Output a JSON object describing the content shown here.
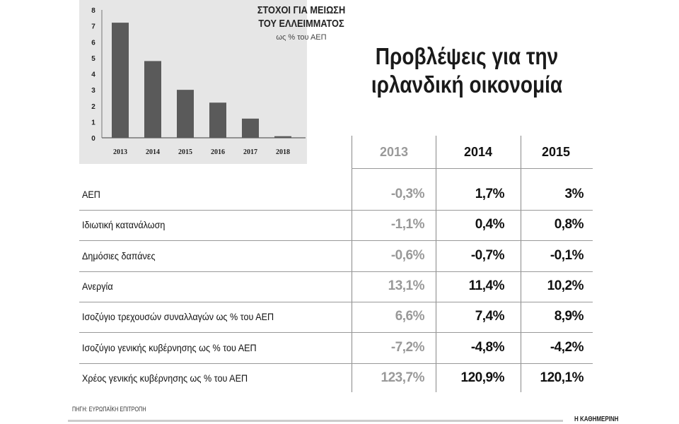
{
  "chart_data": {
    "type": "bar",
    "title": "ΣΤΟΧΟΙ ΓΙΑ ΜΕΙΩΣΗ ΤΟΥ ΕΛΛΕΙΜΜΑΤΟΣ",
    "title_lines": [
      "ΣΤΟΧΟΙ ΓΙΑ ΜΕΙΩΣΗ",
      "ΤΟΥ ΕΛΛΕΙΜΜΑΤΟΣ"
    ],
    "subtitle": "ως % του ΑΕΠ",
    "categories": [
      "2013",
      "2014",
      "2015",
      "2016",
      "2017",
      "2018"
    ],
    "values": [
      7.2,
      4.8,
      3.0,
      2.2,
      1.2,
      0.1
    ],
    "ylim": [
      0,
      8
    ],
    "yticks": [
      0,
      1,
      2,
      3,
      4,
      5,
      6,
      7,
      8
    ],
    "grid": false,
    "bar_color": "#5a5a5a",
    "background": "#e6e6e6"
  },
  "headline": {
    "line1": "Προβλέψεις για την",
    "line2": "ιρλανδική οικονομία"
  },
  "table": {
    "columns": [
      "2013",
      "2014",
      "2015"
    ],
    "rows": [
      {
        "label": "ΑΕΠ",
        "values": [
          "-0,3%",
          "1,7%",
          "3%"
        ]
      },
      {
        "label": "Ιδιωτική κατανάλωση",
        "values": [
          "-1,1%",
          "0,4%",
          "0,8%"
        ]
      },
      {
        "label": "Δημόσιες δαπάνες",
        "values": [
          "-0,6%",
          "-0,7%",
          "-0,1%"
        ]
      },
      {
        "label": "Ανεργία",
        "values": [
          "13,1%",
          "11,4%",
          "10,2%"
        ]
      },
      {
        "label": "Ισοζύγιο τρεχουσών συναλλαγών ως % του ΑΕΠ",
        "values": [
          "6,6%",
          "7,4%",
          "8,9%"
        ]
      },
      {
        "label": "Ισοζύγιο γενικής κυβέρνησης ως % του ΑΕΠ",
        "values": [
          "-7,2%",
          "-4,8%",
          "-4,2%"
        ]
      },
      {
        "label": "Χρέος γενικής κυβέρνησης ως % του ΑΕΠ",
        "values": [
          "123,7%",
          "120,9%",
          "120,1%"
        ]
      }
    ]
  },
  "source": "ΠΗΓΗ: ΕΥΡΩΠΑΪΚΗ ΕΠΙΤΡΟΠΗ",
  "brand": "Η ΚΑΘΗΜΕΡΙΝΗ"
}
